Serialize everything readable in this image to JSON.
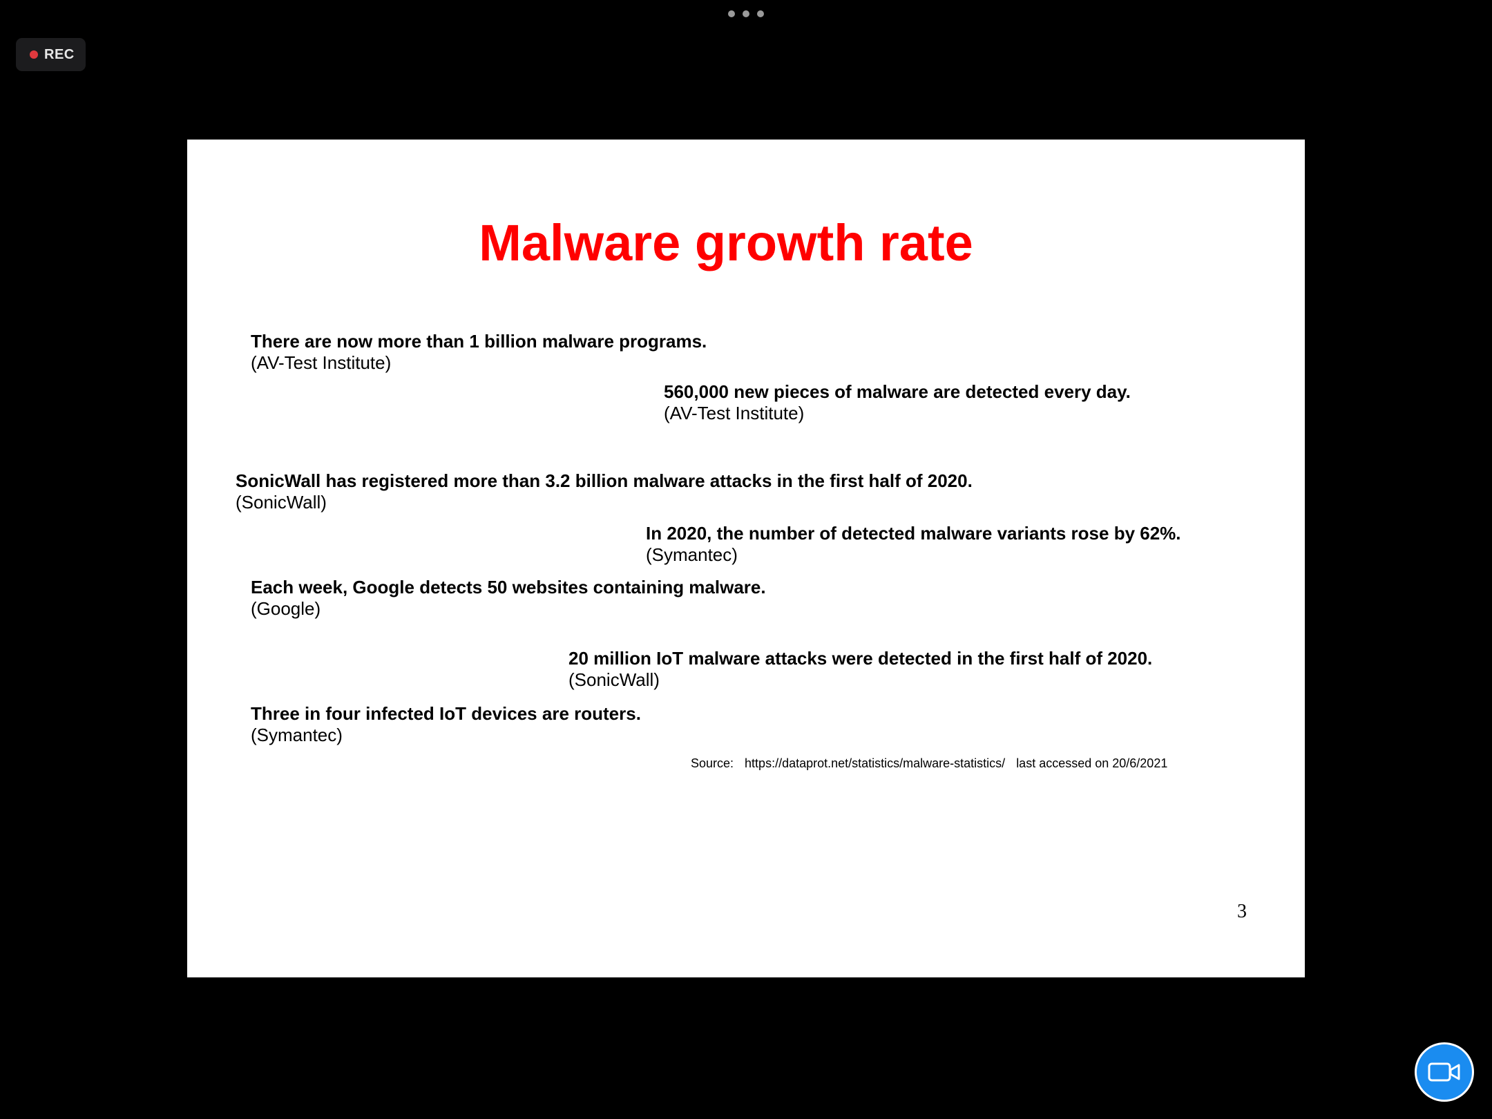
{
  "recording": {
    "label": "REC"
  },
  "slide": {
    "title": "Malware growth rate",
    "stats": [
      {
        "text": "There are now more than 1 billion malware programs.",
        "source": "(AV-Test Institute)"
      },
      {
        "text": "560,000 new pieces of malware are detected every day.",
        "source": "(AV-Test Institute)"
      },
      {
        "text": "SonicWall has registered more than 3.2 billion malware attacks in the first half of 2020.",
        "source": "(SonicWall)"
      },
      {
        "text": "In 2020, the number of detected malware variants rose by 62%.",
        "source": "(Symantec)"
      },
      {
        "text": "Each week, Google detects 50 websites containing malware.",
        "source": "(Google)"
      },
      {
        "text": "20 million IoT malware attacks were detected in the first half of 2020.",
        "source": "(SonicWall)"
      },
      {
        "text": "Three in four infected IoT devices are routers.",
        "source": "(Symantec)"
      }
    ],
    "source_note": {
      "label": "Source:",
      "url": "https://dataprot.net/statistics/malware-statistics/",
      "accessed": "last accessed on 20/6/2021"
    },
    "page_number": "3"
  },
  "icons": {
    "more_menu": "more-horizontal-icon",
    "camera": "video-camera-icon"
  },
  "colors": {
    "title": "#ff0000",
    "rec_dot": "#e0393e",
    "camera_button": "#1a8cf0",
    "background": "#000000"
  }
}
